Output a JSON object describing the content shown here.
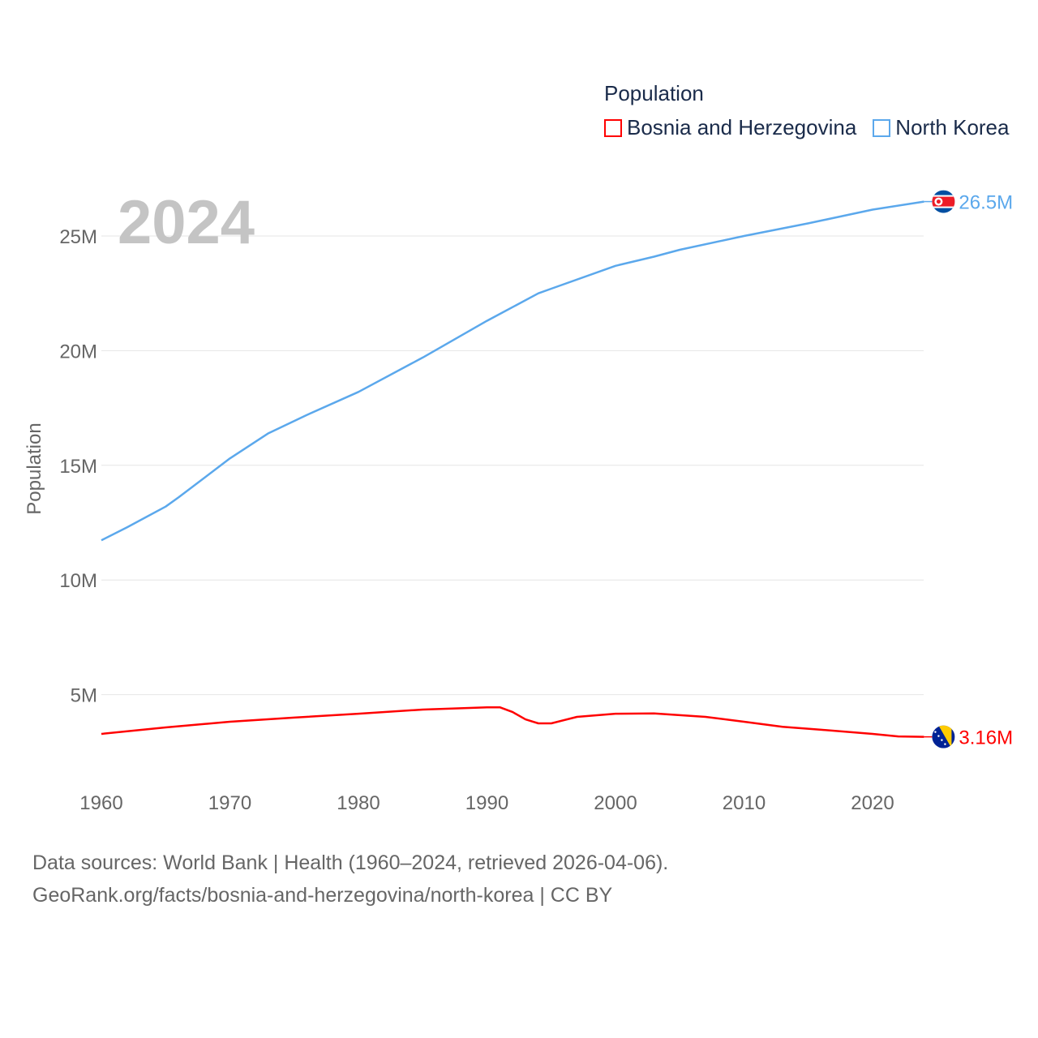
{
  "chart_data": {
    "type": "line",
    "title": "Population",
    "year_label": "2024",
    "ylabel": "Population",
    "xlabel": "",
    "xlim": [
      1960,
      2024
    ],
    "ylim": [
      0,
      27000000
    ],
    "x_ticks": [
      "1960",
      "1970",
      "1980",
      "1990",
      "2000",
      "2010",
      "2020"
    ],
    "y_ticks": [
      {
        "v": 5000000,
        "label": "5M"
      },
      {
        "v": 10000000,
        "label": "10M"
      },
      {
        "v": 15000000,
        "label": "15M"
      },
      {
        "v": 20000000,
        "label": "20M"
      },
      {
        "v": 25000000,
        "label": "25M"
      }
    ],
    "grid": true,
    "legend_position": "top-right",
    "series": [
      {
        "name": "Bosnia and Herzegovina",
        "color": "#ff0000",
        "end_label": "3.16M",
        "flag": "bosnia-flag",
        "x": [
          1960,
          1965,
          1970,
          1975,
          1980,
          1985,
          1990,
          1991,
          1992,
          1993,
          1994,
          1995,
          1997,
          2000,
          2003,
          2007,
          2010,
          2013,
          2016,
          2020,
          2022,
          2024
        ],
        "values": [
          3.29,
          3.57,
          3.82,
          4.0,
          4.17,
          4.35,
          4.45,
          4.45,
          4.24,
          3.92,
          3.75,
          3.75,
          4.03,
          4.17,
          4.18,
          4.03,
          3.82,
          3.6,
          3.47,
          3.29,
          3.18,
          3.16
        ]
      },
      {
        "name": "North Korea",
        "color": "#5ba8ec",
        "end_label": "26.5M",
        "flag": "north-korea-flag",
        "x": [
          1960,
          1962,
          1965,
          1966,
          1970,
          1973,
          1976,
          1980,
          1985,
          1990,
          1994,
          1995,
          2000,
          2003,
          2005,
          2010,
          2015,
          2020,
          2024
        ],
        "values": [
          11.73,
          12.3,
          13.2,
          13.6,
          15.3,
          16.4,
          17.2,
          18.2,
          19.7,
          21.3,
          22.5,
          22.7,
          23.7,
          24.1,
          24.4,
          25.0,
          25.55,
          26.15,
          26.5
        ]
      }
    ]
  },
  "footer": {
    "line1": "Data sources: World Bank | Health (1960–2024, retrieved 2026-04-06).",
    "line2": "GeoRank.org/facts/bosnia-and-herzegovina/north-korea | CC BY"
  }
}
